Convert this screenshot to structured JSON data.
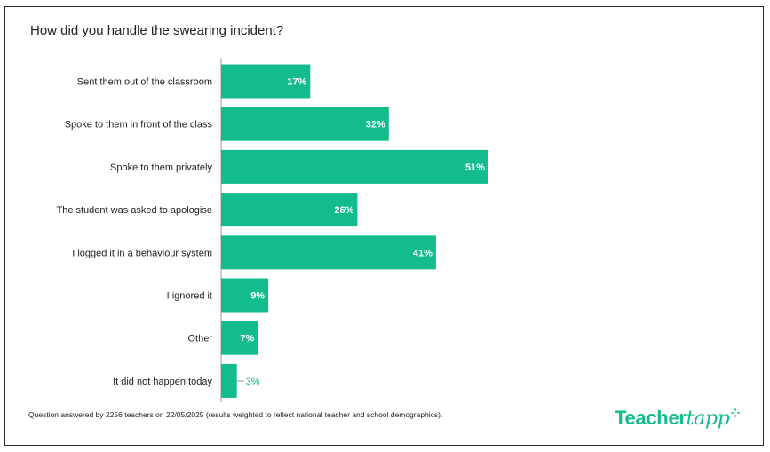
{
  "title": "How did you handle the swearing incident?",
  "footnote": "Question answered by 2256 teachers on 22/05/2025 (results weighted to reflect national teacher and school demographics).",
  "logo": {
    "part1": "Teacher",
    "part2": "tapp"
  },
  "colors": {
    "bar": "#12bc8c",
    "label_inside": "#ffffff",
    "label_outside": "#12bc8c",
    "axis": "#999999"
  },
  "chart_data": {
    "type": "bar",
    "orientation": "horizontal",
    "categories": [
      "Sent them out of the classroom",
      "Spoke to them in front of the class",
      "Spoke to them privately",
      "The student was asked to apologise",
      "I logged it in a behaviour system",
      "I ignored it",
      "Other",
      "It did not happen today"
    ],
    "values": [
      17,
      32,
      51,
      26,
      41,
      9,
      7,
      3
    ],
    "value_labels": [
      "17%",
      "32%",
      "51%",
      "26%",
      "41%",
      "9%",
      "7%",
      "3%"
    ],
    "unit": "%",
    "xlim": [
      0,
      100
    ],
    "grid": false,
    "legend": "none"
  }
}
